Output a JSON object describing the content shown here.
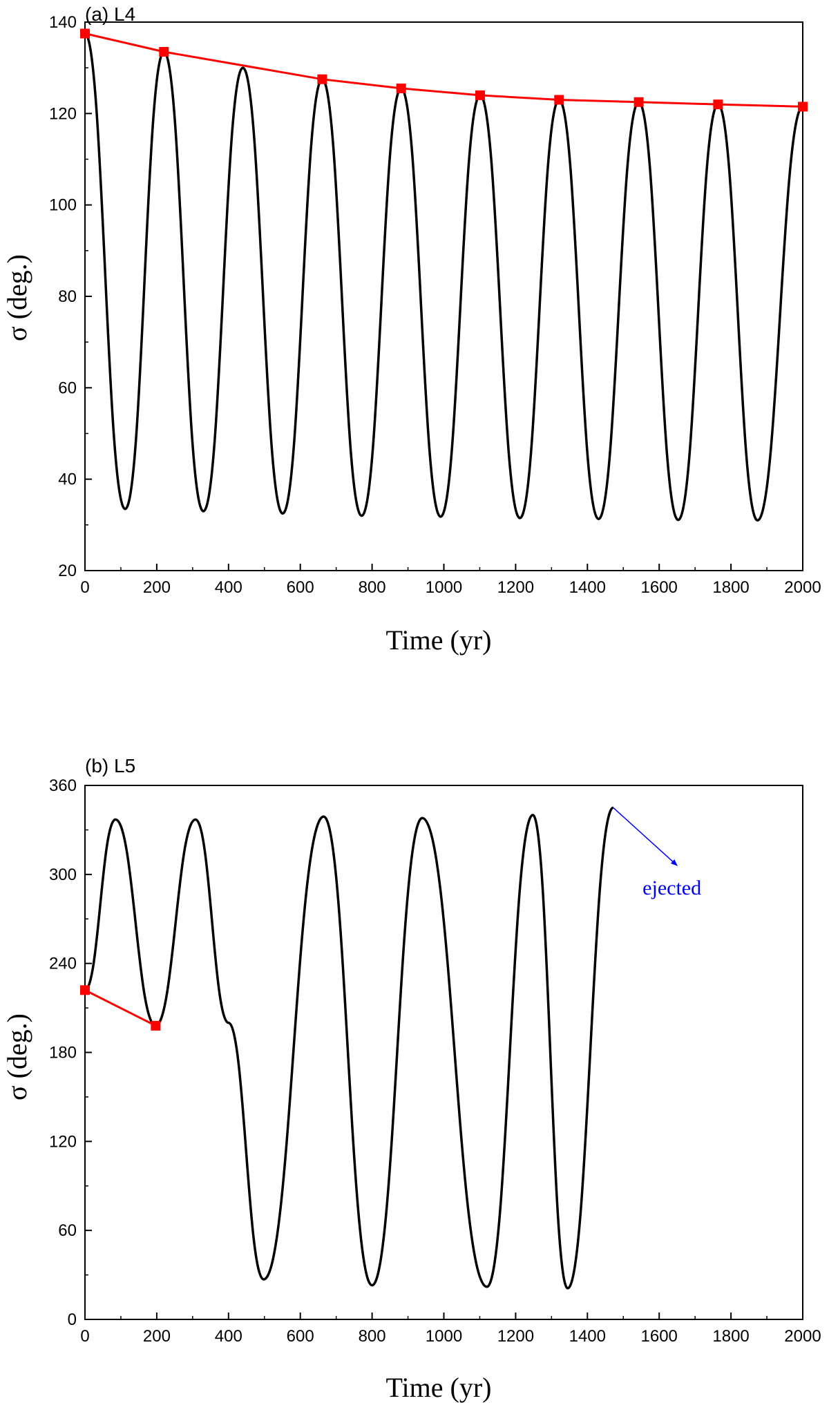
{
  "chart_data": [
    {
      "type": "line",
      "panel_label": "(a) L4",
      "xlabel": "Time (yr)",
      "ylabel": "σ (deg.)",
      "xlim": [
        0,
        2000
      ],
      "ylim": [
        20,
        140
      ],
      "xticks": [
        0,
        200,
        400,
        600,
        800,
        1000,
        1200,
        1400,
        1600,
        1800,
        2000
      ],
      "yticks": [
        20,
        40,
        60,
        80,
        100,
        120,
        140
      ],
      "grid": false,
      "series": [
        {
          "style": "oscillation",
          "color": "#000000",
          "marker": false,
          "x": [
            0,
            112,
            220,
            330,
            440,
            551,
            661,
            771,
            881,
            991,
            1101,
            1212,
            1321,
            1431,
            1543,
            1653,
            1764,
            1874,
            2000
          ],
          "y": [
            137.5,
            33.5,
            133.5,
            33,
            130,
            32.5,
            127.5,
            32,
            125.5,
            31.8,
            124,
            31.5,
            123,
            31.3,
            122.5,
            31.1,
            122,
            31,
            121.5
          ]
        },
        {
          "style": "envelope",
          "color": "#ff0000",
          "marker": "square",
          "x": [
            0,
            220,
            661,
            881,
            1101,
            1321,
            1543,
            1764,
            2000
          ],
          "y": [
            137.5,
            133.5,
            127.5,
            125.5,
            124,
            123,
            122.5,
            122,
            121.5
          ]
        }
      ]
    },
    {
      "type": "line",
      "panel_label": "(b) L5",
      "xlabel": "Time (yr)",
      "ylabel": "σ (deg.)",
      "xlim": [
        0,
        2000
      ],
      "ylim": [
        0,
        360
      ],
      "xticks": [
        0,
        200,
        400,
        600,
        800,
        1000,
        1200,
        1400,
        1600,
        1800,
        2000
      ],
      "yticks": [
        0,
        60,
        120,
        180,
        240,
        300,
        360
      ],
      "grid": false,
      "series": [
        {
          "style": "oscillation",
          "color": "#000000",
          "marker": false,
          "x": [
            0,
            85,
            197,
            308,
            400,
            498,
            665,
            800,
            940,
            1120,
            1248,
            1345,
            1472
          ],
          "y": [
            222,
            337,
            198,
            337,
            200,
            27,
            339,
            23,
            338,
            22,
            340,
            21,
            345
          ]
        },
        {
          "style": "envelope",
          "color": "#ff0000",
          "marker": "square",
          "x": [
            0,
            197
          ],
          "y": [
            222,
            198
          ]
        }
      ],
      "annotations": [
        {
          "text": "ejected",
          "color": "#0000ff",
          "arrow_from": [
            1472,
            345
          ],
          "arrow_to": [
            1650,
            306
          ]
        }
      ]
    }
  ]
}
